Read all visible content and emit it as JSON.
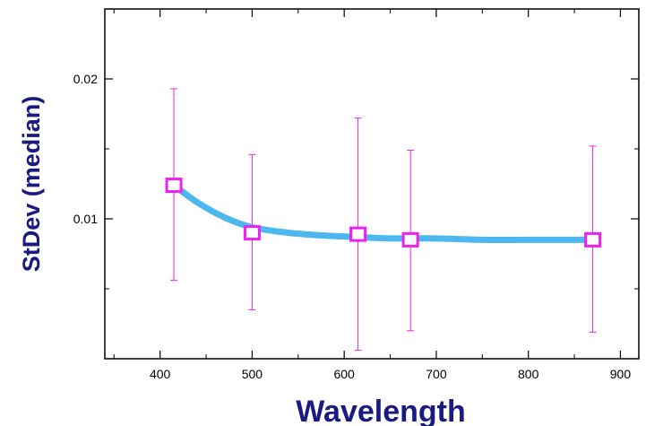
{
  "chart_data": {
    "type": "line",
    "xlabel": "Wavelength",
    "ylabel": "StDev (median)",
    "xlim": [
      340,
      920
    ],
    "ylim": [
      0.0,
      0.025
    ],
    "x_ticks": [
      400,
      500,
      600,
      700,
      800,
      900
    ],
    "x_tick_labels": [
      "400",
      "500",
      "600",
      "700",
      "800",
      "900"
    ],
    "y_ticks": [
      0.01,
      0.02
    ],
    "y_tick_labels": [
      "0.01",
      "0.02"
    ],
    "grid": false,
    "series": [
      {
        "kind": "points-with-error-bars",
        "x": [
          415,
          500,
          615,
          672,
          870
        ],
        "y": [
          0.0124,
          0.009,
          0.0089,
          0.0085,
          0.0085
        ],
        "error_low": [
          0.0056,
          0.0035,
          0.0006,
          0.002,
          0.0019
        ],
        "error_high": [
          0.0193,
          0.0146,
          0.0172,
          0.0149,
          0.0152
        ],
        "color": "#ee22ee"
      },
      {
        "kind": "fit-curve",
        "x": [
          415,
          440,
          470,
          500,
          540,
          580,
          615,
          650,
          700,
          750,
          800,
          870
        ],
        "y": [
          0.0124,
          0.0112,
          0.0101,
          0.0094,
          0.009,
          0.0088,
          0.0087,
          0.0086,
          0.0086,
          0.0085,
          0.0085,
          0.0085
        ],
        "color": "#4db8f0"
      }
    ]
  }
}
